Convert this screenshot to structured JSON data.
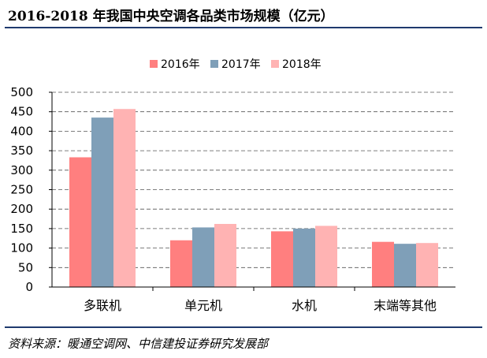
{
  "header": {
    "title": "2016-2018 年我国中央空调各品类市场规模（亿元）"
  },
  "footer": {
    "source": "资料来源：暖通空调网、中信建投证券研究发展部"
  },
  "chart_data": {
    "type": "bar",
    "title": "",
    "xlabel": "",
    "ylabel": "",
    "ylim": [
      0,
      500
    ],
    "yticks": [
      0,
      50,
      100,
      150,
      200,
      250,
      300,
      350,
      400,
      450,
      500
    ],
    "grid": true,
    "legend_position": "top",
    "categories": [
      "多联机",
      "单元机",
      "水机",
      "末端等其他"
    ],
    "series": [
      {
        "name": "2016年",
        "color": "#ff7f7f",
        "values": [
          333,
          120,
          143,
          116
        ]
      },
      {
        "name": "2017年",
        "color": "#7f9fb8",
        "values": [
          435,
          153,
          150,
          111
        ]
      },
      {
        "name": "2018年",
        "color": "#ffb3b3",
        "values": [
          457,
          162,
          157,
          113
        ]
      }
    ]
  }
}
